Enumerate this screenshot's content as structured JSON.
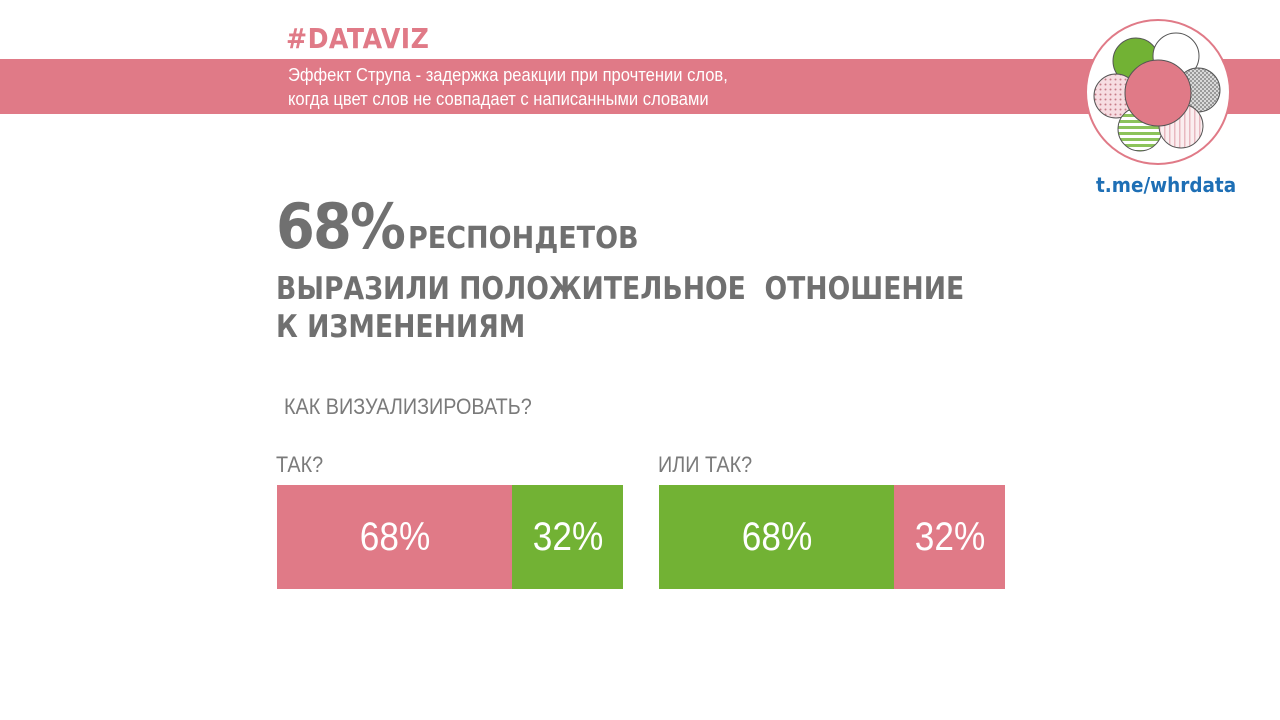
{
  "header": {
    "tag": "#DATAVIZ",
    "subtitle_line1": "Эффект Струпа - задержка реакции при прочтении слов,",
    "subtitle_line2": "когда цвет слов не совпадает с написанными словами",
    "channel_link": "t.me/whrdata",
    "colors": {
      "banner": "#e07a87",
      "link": "#1e6fb5"
    }
  },
  "headline": {
    "percent": "68%",
    "word": "респондетов",
    "line2": "ВЫРАЗИЛИ ПОЛОЖИТЕЛЬНОЕ  ОТНОШЕНИЕ",
    "line3": "К ИЗМЕНЕНИЯМ"
  },
  "question": "КАК ВИЗУАЛИЗИРОВАТЬ?",
  "chart_data": [
    {
      "type": "bar",
      "orientation": "horizontal-stacked",
      "label": "ТАК?",
      "segments": [
        {
          "value": 68,
          "text": "68%",
          "color": "#e07a87"
        },
        {
          "value": 32,
          "text": "32%",
          "color": "#72b234"
        }
      ]
    },
    {
      "type": "bar",
      "orientation": "horizontal-stacked",
      "label": "ИЛИ ТАК?",
      "segments": [
        {
          "value": 68,
          "text": "68%",
          "color": "#72b234"
        },
        {
          "value": 32,
          "text": "32%",
          "color": "#e07a87"
        }
      ]
    }
  ]
}
